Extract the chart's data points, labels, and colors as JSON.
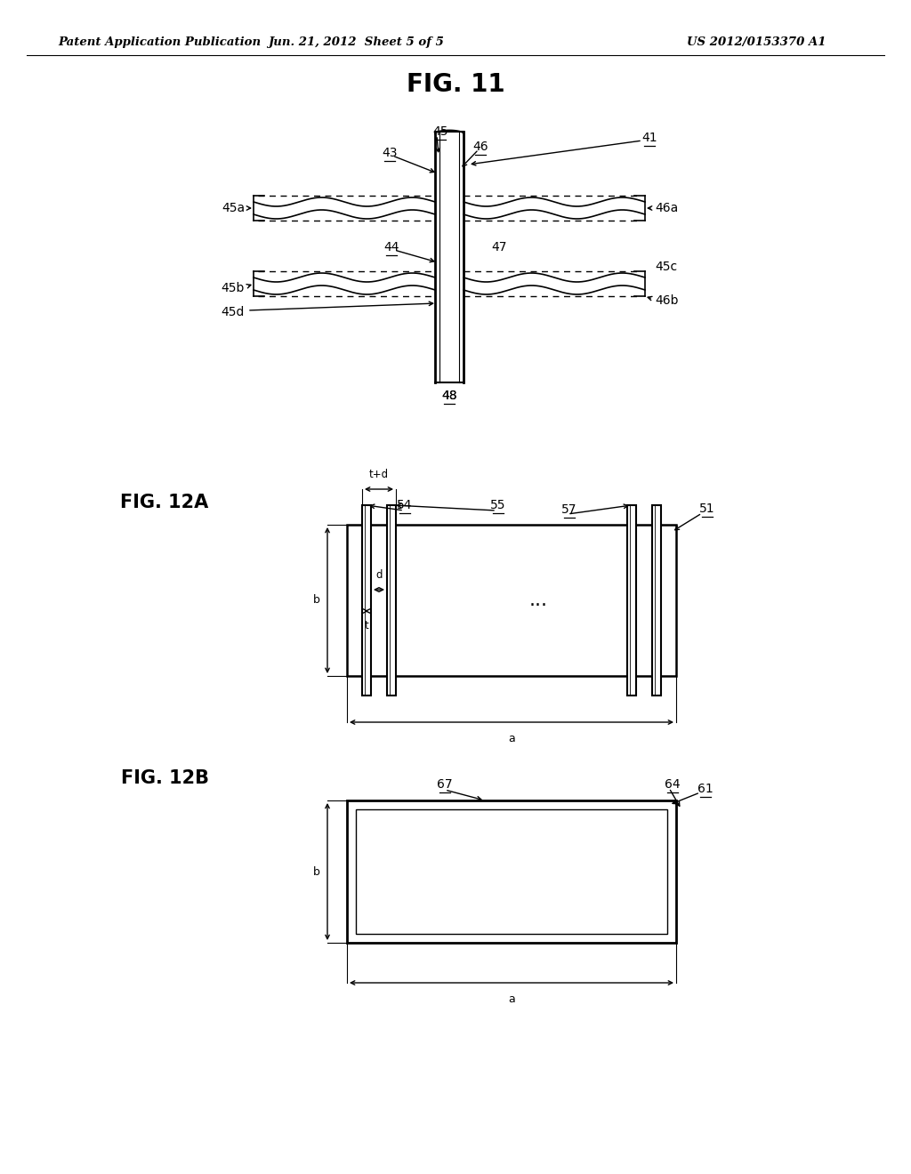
{
  "bg_color": "#ffffff",
  "header_left": "Patent Application Publication",
  "header_center": "Jun. 21, 2012  Sheet 5 of 5",
  "header_right": "US 2012/0153370 A1",
  "fig11_title": "FIG. 11",
  "fig12a_title": "FIG. 12A",
  "fig12b_title": "FIG. 12B"
}
